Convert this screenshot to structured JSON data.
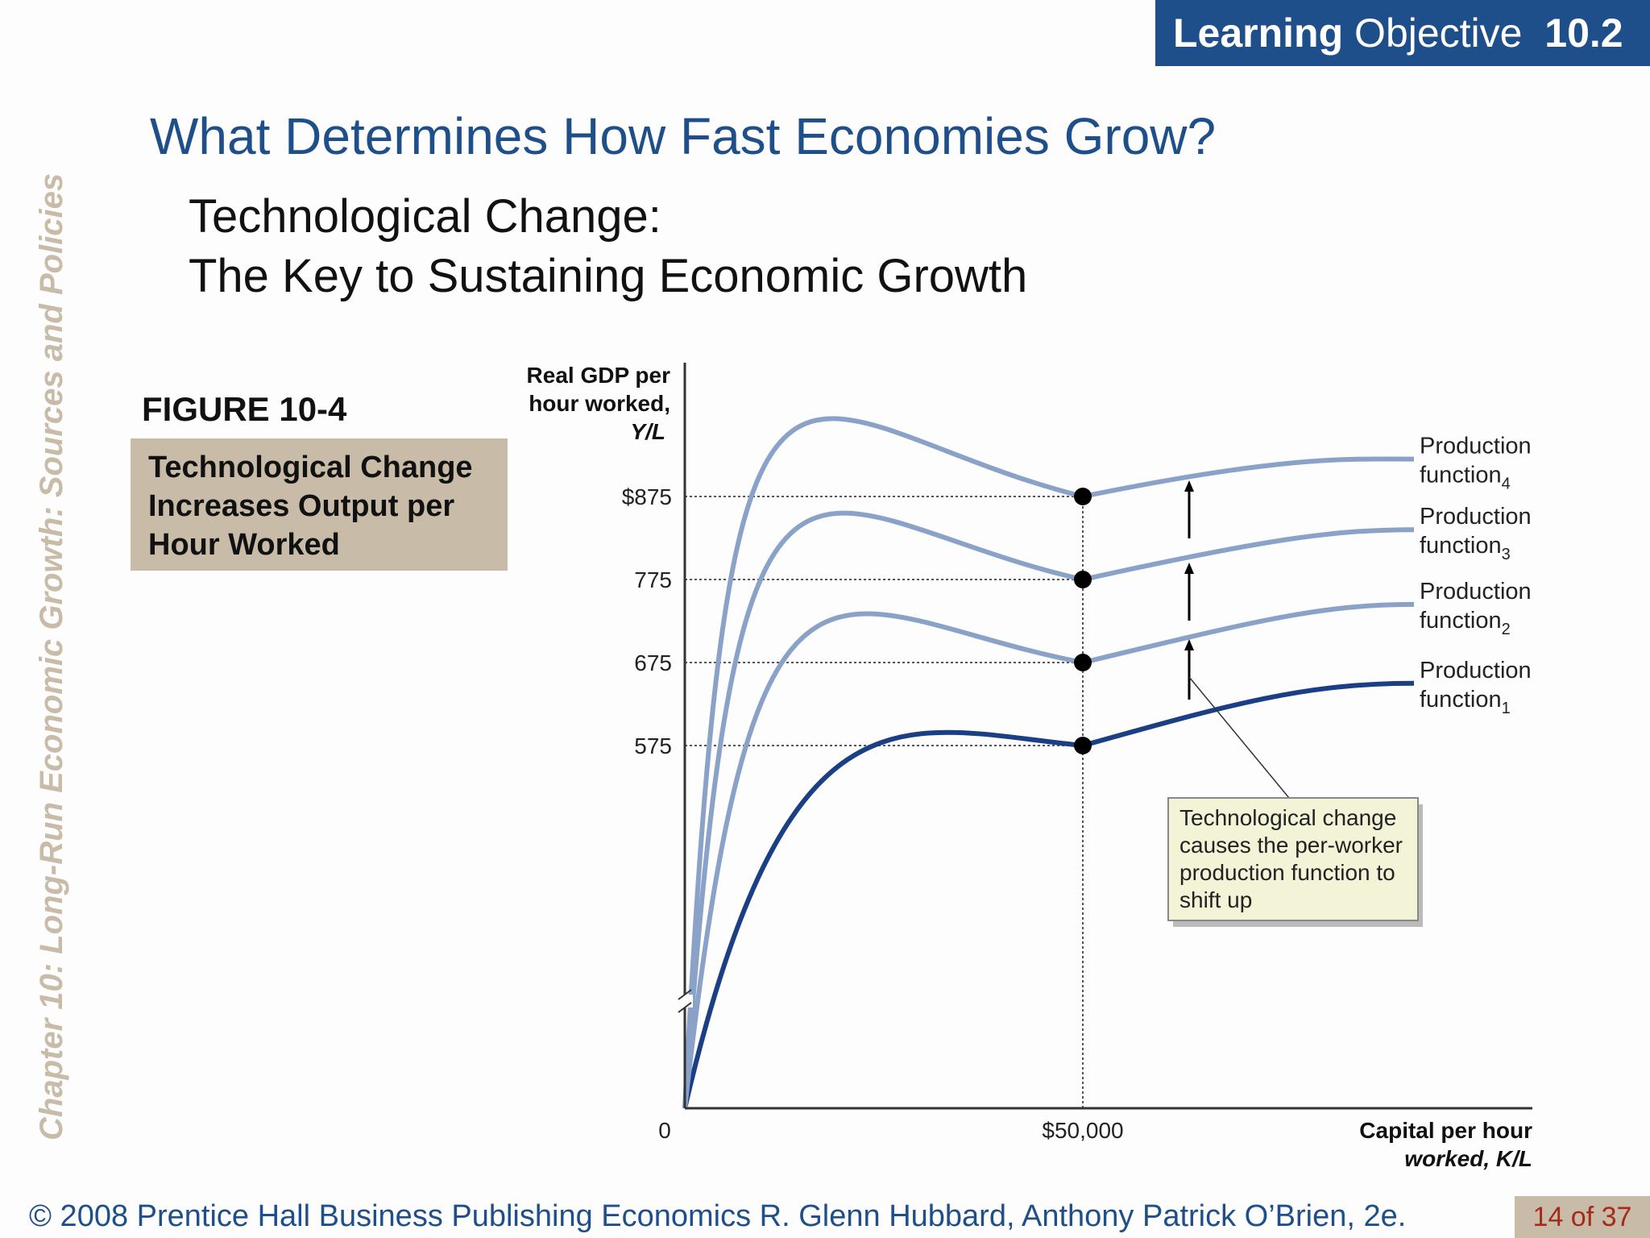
{
  "banner": {
    "bold": "Learning",
    "rest": "Objective",
    "number": "10.2"
  },
  "side_title": "Chapter 10:  Long-Run Economic Growth:  Sources and Policies",
  "title": "What Determines How Fast Economies Grow?",
  "subtitle": {
    "line1": "Technological Change:",
    "line2": "The Key to Sustaining Economic Growth"
  },
  "figure": {
    "label": "FIGURE 10-4",
    "caption": [
      "Technological Change",
      "Increases Output per",
      "Hour Worked"
    ]
  },
  "colors": {
    "navy": "#1f4f8a",
    "light_curve": "#8aa2c8",
    "dark_curve": "#1a3f85",
    "tan": "#c8bca8",
    "note_bg": "#f3f3d7"
  },
  "chart_data": {
    "type": "line",
    "ylabel": [
      "Real GDP per",
      "hour worked,",
      "Y/L"
    ],
    "xlabel": [
      "Capital per hour",
      "worked, K/L"
    ],
    "origin_label": "0",
    "x_tick_label": "$50,000",
    "x_marked": 50000,
    "y_tick_labels": [
      "575",
      "675",
      "775",
      "$875"
    ],
    "y_axis_break": true,
    "series": [
      {
        "name": "Production function1",
        "label": "Production",
        "label2": "function",
        "sub": "1",
        "value_at_marked": 575,
        "plateau": 650,
        "emphasis": true
      },
      {
        "name": "Production function2",
        "label": "Production",
        "label2": "function",
        "sub": "2",
        "value_at_marked": 675,
        "plateau": 745
      },
      {
        "name": "Production function3",
        "label": "Production",
        "label2": "function",
        "sub": "3",
        "value_at_marked": 775,
        "plateau": 835
      },
      {
        "name": "Production function4",
        "label": "Production",
        "label2": "function",
        "sub": "4",
        "value_at_marked": 875,
        "plateau": 920
      }
    ],
    "annotation": [
      "Technological change",
      "causes the per-worker",
      "production function to",
      "shift up"
    ]
  },
  "footer": "© 2008 Prentice Hall Business Publishing   Economics  R. Glenn Hubbard, Anthony Patrick O’Brien, 2e.",
  "page": "14 of 37"
}
